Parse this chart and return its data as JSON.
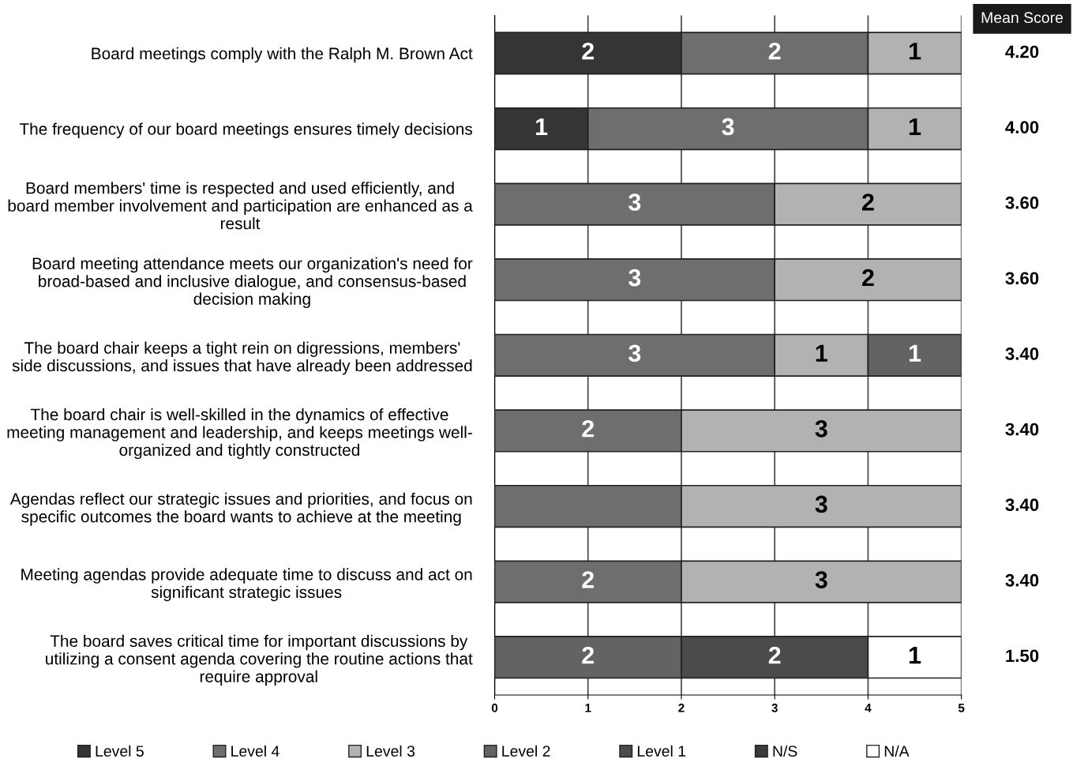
{
  "chart_data": {
    "type": "bar",
    "orientation": "horizontal",
    "stacked": true,
    "categories": [
      "Board meetings comply with the Ralph M. Brown Act",
      "The frequency of our board meetings ensures timely decisions",
      "Board members' time is respected and used efficiently, and\nboard member involvement and participation are enhanced as a\nresult",
      "Board meeting attendance meets our organization's need for\nbroad-based and inclusive dialogue, and consensus-based\ndecision making",
      "The board chair keeps a tight rein on digressions, members'\nside discussions, and issues that have already been addressed",
      "The board chair is well-skilled in the dynamics of effective\nmeeting management and leadership, and keeps meetings well-\norganized and tightly constructed",
      "Agendas reflect our strategic issues and priorities, and focus on\nspecific outcomes the board wants to achieve at the meeting",
      "Meeting agendas provide adequate time to discuss and act on\nsignificant strategic issues",
      "The board saves critical time for important discussions by\nutilizing a consent agenda covering the routine actions that\nrequire approval"
    ],
    "series": [
      {
        "name": "Level 5",
        "color": "#353535",
        "values": [
          2,
          1,
          null,
          null,
          null,
          null,
          null,
          null,
          null
        ],
        "value_labels": [
          "2",
          "1",
          null,
          null,
          null,
          null,
          null,
          null,
          null
        ]
      },
      {
        "name": "Level 4",
        "color": "#6e6e6e",
        "values": [
          2,
          3,
          3,
          3,
          3,
          2,
          2,
          2,
          null
        ],
        "value_labels": [
          "2",
          "3",
          "3",
          "3",
          "3",
          "2",
          null,
          "2",
          null
        ]
      },
      {
        "name": "Level 3",
        "color": "#b2b2b2",
        "values": [
          1,
          1,
          2,
          2,
          1,
          3,
          3,
          3,
          null
        ],
        "value_labels": [
          "1",
          "1",
          "2",
          "2",
          "1",
          "3",
          "3",
          "3",
          null
        ]
      },
      {
        "name": "Level 2",
        "color": "#636363",
        "values": [
          null,
          null,
          null,
          null,
          1,
          null,
          null,
          null,
          2
        ],
        "value_labels": [
          null,
          null,
          null,
          null,
          "1",
          null,
          null,
          null,
          "2"
        ]
      },
      {
        "name": "Level 1",
        "color": "#4b4b4b",
        "values": [
          null,
          null,
          null,
          null,
          null,
          null,
          null,
          null,
          2
        ],
        "value_labels": [
          null,
          null,
          null,
          null,
          null,
          null,
          null,
          null,
          "2"
        ]
      },
      {
        "name": "N/S",
        "color": "#3a3a3a",
        "values": [
          null,
          null,
          null,
          null,
          null,
          null,
          null,
          null,
          null
        ]
      },
      {
        "name": "N/A",
        "color": "#ffffff",
        "values": [
          null,
          null,
          null,
          null,
          null,
          null,
          null,
          null,
          1
        ],
        "value_labels": [
          null,
          null,
          null,
          null,
          null,
          null,
          null,
          null,
          "1"
        ]
      }
    ],
    "xlim": [
      0,
      5
    ],
    "xticks": [
      0,
      1,
      2,
      3,
      4,
      5
    ],
    "grid": "x",
    "legend": "bottom",
    "annotations": [
      "Mean Score",
      "4.20",
      "4.00",
      "3.60",
      "3.60",
      "3.40",
      "3.40",
      "3.40",
      "3.40",
      "1.50"
    ]
  }
}
